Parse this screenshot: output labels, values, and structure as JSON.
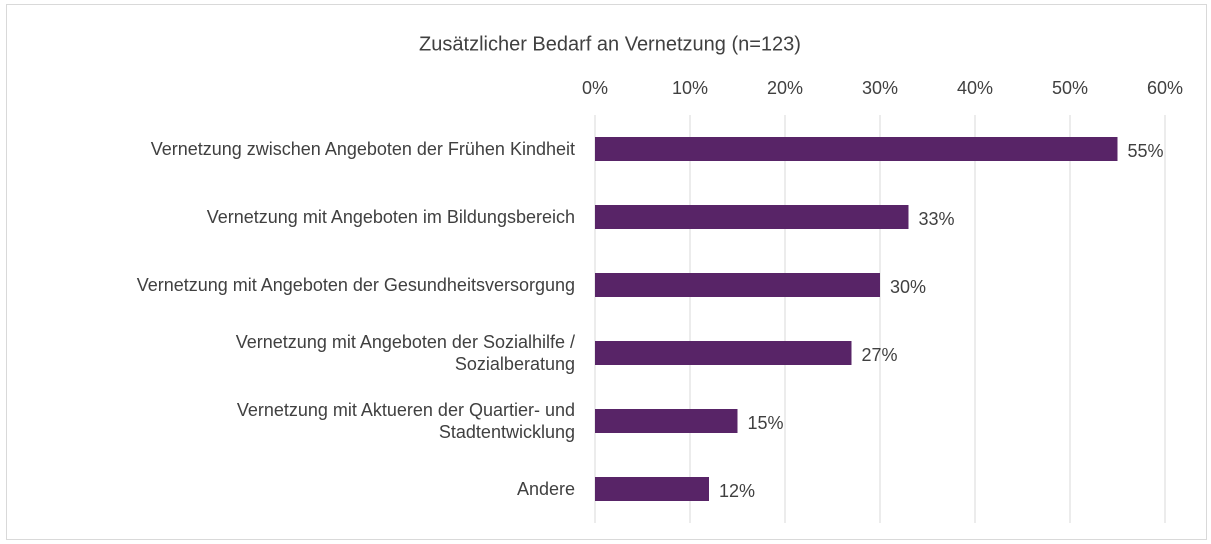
{
  "chart_data": {
    "type": "bar",
    "orientation": "horizontal",
    "title": "Zusätzlicher Bedarf an Vernetzung (n=123)",
    "categories": [
      "Vernetzung zwischen Angeboten der Frühen Kindheit",
      "Vernetzung mit Angeboten im Bildungsbereich",
      "Vernetzung mit Angeboten der Gesundheitsversorgung",
      "Vernetzung mit Angeboten der Sozialhilfe /\nSozialberatung",
      "Vernetzung mit Aktueren der Quartier- und\nStadtentwicklung",
      "Andere"
    ],
    "values": [
      55,
      33,
      30,
      27,
      15,
      12
    ],
    "value_labels": [
      "55%",
      "33%",
      "30%",
      "27%",
      "15%",
      "12%"
    ],
    "color": "#582467",
    "xlim": [
      0,
      60
    ],
    "xticks": [
      {
        "value": 0,
        "label": "0%"
      },
      {
        "value": 10,
        "label": "10%"
      },
      {
        "value": 20,
        "label": "20%"
      },
      {
        "value": 30,
        "label": "30%"
      },
      {
        "value": 40,
        "label": "40%"
      },
      {
        "value": 50,
        "label": "50%"
      },
      {
        "value": 60,
        "label": "60%"
      }
    ],
    "grid": true
  }
}
